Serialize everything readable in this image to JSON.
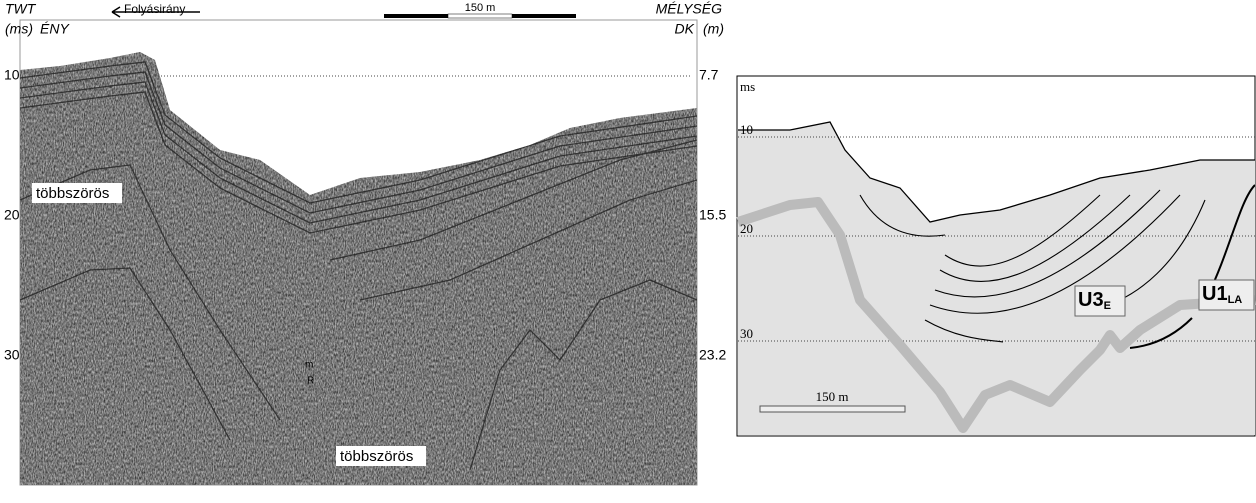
{
  "profile": {
    "depth_axis_left_title": "TWT",
    "depth_axis_left_unit": "(ms)",
    "left_direction": "ÉNY",
    "flow_direction": "Folyásirány",
    "scale_bar": "150 m",
    "depth_axis_right_title": "MÉLYSÉG",
    "right_direction": "DK",
    "depth_axis_right_unit": "(m)",
    "twt_ticks": [
      "10",
      "20",
      "30"
    ],
    "depth_ticks": [
      "7.7",
      "15.5",
      "23.2"
    ],
    "annotations": [
      "többszörös",
      "többszörös",
      "m",
      "R"
    ]
  },
  "interpretation": {
    "axis_unit": "ms",
    "ticks": [
      "10",
      "20",
      "30"
    ],
    "unit_u3": "U3",
    "unit_u3_sub": "E",
    "unit_u1": "U1",
    "unit_u1_sub": "LA",
    "scale_bar": "150 m"
  }
}
